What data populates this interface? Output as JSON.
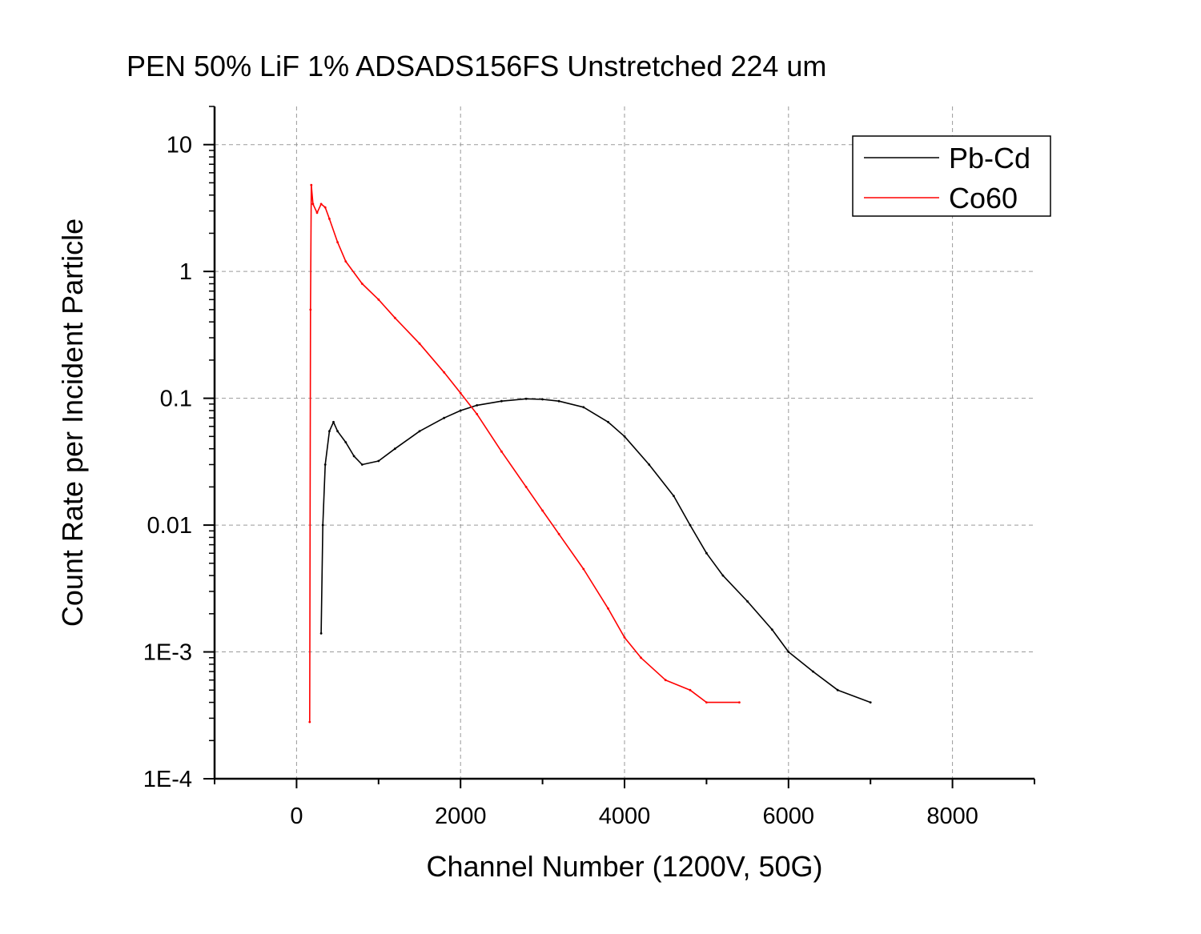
{
  "chart_data": {
    "type": "line",
    "title": "PEN 50% LiF 1% ADSADS156FS Unstretched 224 um",
    "xlabel": "Channel Number (1200V, 50G)",
    "ylabel": "Count Rate per Incident Particle",
    "xlim": [
      -1000,
      9000
    ],
    "ylim": [
      0.0001,
      20
    ],
    "yscale": "log",
    "grid": true,
    "legend_position": "top-right",
    "x_ticks": [
      "0",
      "2000",
      "4000",
      "6000",
      "8000"
    ],
    "y_ticks": [
      "1E-4",
      "1E-3",
      "0.01",
      "0.1",
      "1",
      "10"
    ],
    "series": [
      {
        "name": "Pb-Cd",
        "color": "#000000",
        "x": [
          300,
          320,
          350,
          400,
          450,
          500,
          600,
          700,
          800,
          1000,
          1200,
          1500,
          1800,
          2000,
          2200,
          2500,
          2800,
          3000,
          3200,
          3500,
          3800,
          4000,
          4300,
          4600,
          4800,
          5000,
          5200,
          5500,
          5800,
          6000,
          6300,
          6600,
          7000
        ],
        "values": [
          0.0014,
          0.01,
          0.03,
          0.055,
          0.065,
          0.055,
          0.045,
          0.035,
          0.03,
          0.032,
          0.04,
          0.055,
          0.07,
          0.08,
          0.088,
          0.095,
          0.099,
          0.098,
          0.095,
          0.085,
          0.065,
          0.05,
          0.03,
          0.017,
          0.01,
          0.006,
          0.004,
          0.0025,
          0.0015,
          0.001,
          0.0007,
          0.0005,
          0.0004
        ]
      },
      {
        "name": "Co60",
        "color": "#ff0000",
        "x": [
          160,
          170,
          180,
          200,
          250,
          300,
          350,
          400,
          500,
          600,
          800,
          1000,
          1200,
          1500,
          1800,
          2000,
          2200,
          2500,
          2800,
          3000,
          3200,
          3500,
          3800,
          4000,
          4200,
          4500,
          4800,
          5000,
          5400
        ],
        "values": [
          0.00028,
          0.5,
          4.8,
          3.4,
          2.9,
          3.4,
          3.2,
          2.6,
          1.7,
          1.2,
          0.8,
          0.6,
          0.43,
          0.27,
          0.16,
          0.11,
          0.075,
          0.038,
          0.02,
          0.013,
          0.0085,
          0.0045,
          0.0022,
          0.0013,
          0.0009,
          0.0006,
          0.0005,
          0.0004,
          0.0004
        ]
      }
    ]
  }
}
